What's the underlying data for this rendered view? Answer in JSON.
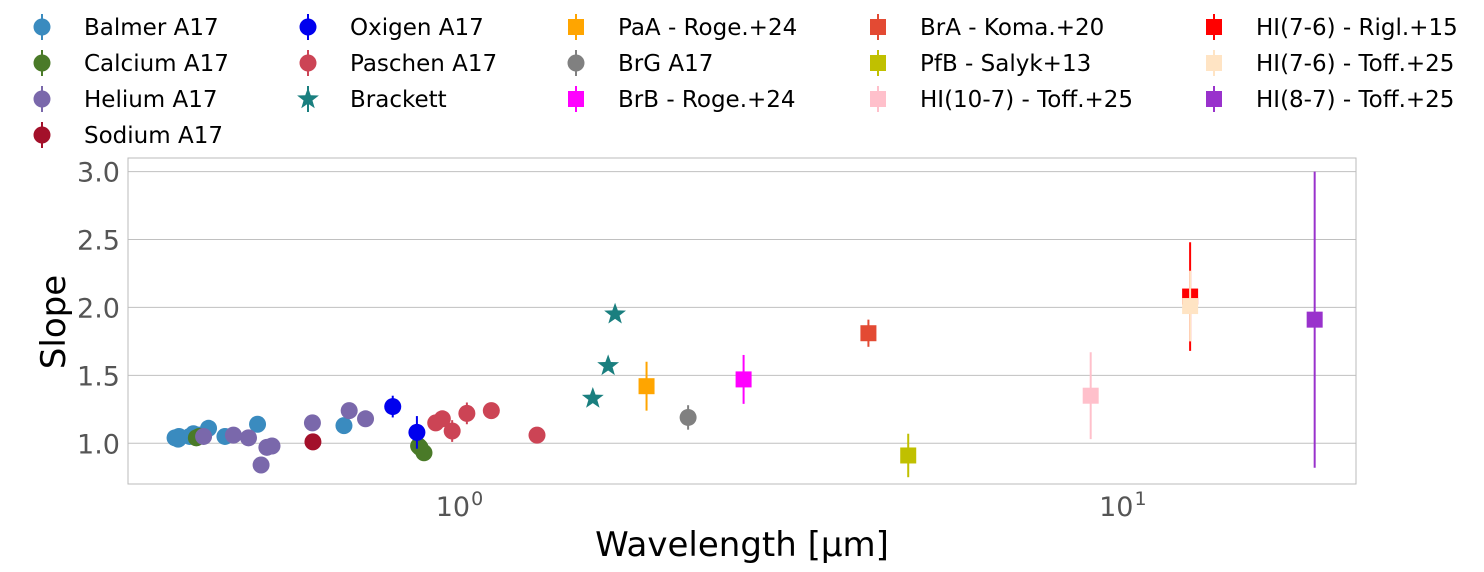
{
  "chart_data": {
    "type": "scatter",
    "title": "",
    "xlabel": "Wavelength [μm]",
    "ylabel": "Slope",
    "xscale": "log",
    "xlim": [
      0.31,
      22.0
    ],
    "ylim": [
      0.7,
      3.1
    ],
    "x_ticks": [
      {
        "value": 1,
        "label": "10",
        "exp": "0"
      },
      {
        "value": 10,
        "label": "10",
        "exp": "1"
      }
    ],
    "y_ticks": [
      {
        "value": 1.0,
        "label": "1.0"
      },
      {
        "value": 1.5,
        "label": "1.5"
      },
      {
        "value": 2.0,
        "label": "2.0"
      },
      {
        "value": 2.5,
        "label": "2.5"
      },
      {
        "value": 3.0,
        "label": "3.0"
      }
    ],
    "grid": "horizontal",
    "legend_position": "top",
    "series": [
      {
        "name": "Balmer A17",
        "marker": "circle",
        "color": "#3a8bbf",
        "points": [
          {
            "x": 0.365,
            "y": 1.04,
            "err": 0.02
          },
          {
            "x": 0.37,
            "y": 1.05,
            "err": 0.02
          },
          {
            "x": 0.384,
            "y": 1.05,
            "err": 0.02
          },
          {
            "x": 0.389,
            "y": 1.07,
            "err": 0.02
          },
          {
            "x": 0.397,
            "y": 1.06,
            "err": 0.02
          },
          {
            "x": 0.41,
            "y": 1.11,
            "err": 0.02
          },
          {
            "x": 0.434,
            "y": 1.05,
            "err": 0.02
          },
          {
            "x": 0.486,
            "y": 1.14,
            "err": 0.02
          },
          {
            "x": 0.656,
            "y": 1.13,
            "err": 0.02
          },
          {
            "x": 0.369,
            "y": 1.03,
            "err": 0.02
          }
        ]
      },
      {
        "name": "Calcium A17",
        "marker": "circle",
        "color": "#4a7a28",
        "points": [
          {
            "x": 0.393,
            "y": 1.04,
            "err": 0.02
          },
          {
            "x": 0.397,
            "y": 1.05,
            "err": 0.02
          },
          {
            "x": 0.85,
            "y": 0.98,
            "err": 0.02
          },
          {
            "x": 0.854,
            "y": 0.97,
            "err": 0.02
          },
          {
            "x": 0.866,
            "y": 0.93,
            "err": 0.02
          }
        ]
      },
      {
        "name": "Helium A17",
        "marker": "circle",
        "color": "#7a68ab",
        "points": [
          {
            "x": 0.403,
            "y": 1.05,
            "err": 0.02
          },
          {
            "x": 0.447,
            "y": 1.06,
            "err": 0.02
          },
          {
            "x": 0.471,
            "y": 1.04,
            "err": 0.02
          },
          {
            "x": 0.492,
            "y": 0.84,
            "err": 0.05
          },
          {
            "x": 0.502,
            "y": 0.97,
            "err": 0.02
          },
          {
            "x": 0.588,
            "y": 1.15,
            "err": 0.02
          },
          {
            "x": 0.668,
            "y": 1.24,
            "err": 0.02
          },
          {
            "x": 0.707,
            "y": 1.18,
            "err": 0.02
          },
          {
            "x": 0.511,
            "y": 0.98,
            "err": 0.02
          }
        ]
      },
      {
        "name": "Sodium A17",
        "marker": "circle",
        "color": "#a3102a",
        "points": [
          {
            "x": 0.589,
            "y": 1.01,
            "err": 0.02
          }
        ]
      },
      {
        "name": "Oxigen A17",
        "marker": "circle",
        "color": "#0000ee",
        "points": [
          {
            "x": 0.777,
            "y": 1.27,
            "err": 0.08
          },
          {
            "x": 0.845,
            "y": 1.08,
            "err": 0.12
          }
        ]
      },
      {
        "name": "Paschen A17",
        "marker": "circle",
        "color": "#cc4455",
        "points": [
          {
            "x": 0.902,
            "y": 1.15,
            "err": 0.04
          },
          {
            "x": 0.923,
            "y": 1.18,
            "err": 0.06
          },
          {
            "x": 0.955,
            "y": 1.09,
            "err": 0.08
          },
          {
            "x": 1.005,
            "y": 1.22,
            "err": 0.08
          },
          {
            "x": 1.094,
            "y": 1.24,
            "err": 0.03
          },
          {
            "x": 1.282,
            "y": 1.06,
            "err": 0.04
          }
        ]
      },
      {
        "name": "Brackett",
        "marker": "star",
        "color": "#1a7f7f",
        "points": [
          {
            "x": 1.556,
            "y": 1.33
          },
          {
            "x": 1.641,
            "y": 1.57
          },
          {
            "x": 1.681,
            "y": 1.95
          }
        ]
      },
      {
        "name": "PaA - Roge.+24",
        "marker": "square",
        "color": "#ffa500",
        "points": [
          {
            "x": 1.875,
            "y": 1.42,
            "err": 0.18
          }
        ]
      },
      {
        "name": "BrG A17",
        "marker": "circle",
        "color": "#808080",
        "points": [
          {
            "x": 2.166,
            "y": 1.19,
            "err": 0.09
          }
        ]
      },
      {
        "name": "BrB - Roge.+24",
        "marker": "square",
        "color": "#ff00ff",
        "points": [
          {
            "x": 2.626,
            "y": 1.47,
            "err": 0.18
          }
        ]
      },
      {
        "name": "BrA - Koma.+20",
        "marker": "square",
        "color": "#e34a33",
        "points": [
          {
            "x": 4.05,
            "y": 1.81,
            "err": 0.1
          }
        ]
      },
      {
        "name": "PfB - Salyk+13",
        "marker": "square",
        "color": "#c0c000",
        "points": [
          {
            "x": 4.65,
            "y": 0.91,
            "err": 0.16
          }
        ]
      },
      {
        "name": "HI(10-7) - Toff.+25",
        "marker": "square",
        "color": "#ffc0cb",
        "points": [
          {
            "x": 8.76,
            "y": 1.35,
            "err": 0.32
          }
        ]
      },
      {
        "name": "HI(7-6) - Rigl.+15",
        "marker": "square",
        "color": "#ff0000",
        "points": [
          {
            "x": 12.37,
            "y": 2.08,
            "err": 0.4
          }
        ]
      },
      {
        "name": "HI(7-6) - Toff.+25",
        "marker": "square",
        "color": "#ffe4c4",
        "points": [
          {
            "x": 12.37,
            "y": 2.01,
            "err": 0.26
          }
        ]
      },
      {
        "name": "HI(8-7) - Toff.+25",
        "marker": "square",
        "color": "#9932cc",
        "points": [
          {
            "x": 19.06,
            "y": 1.91,
            "err": 1.09
          }
        ]
      }
    ]
  }
}
